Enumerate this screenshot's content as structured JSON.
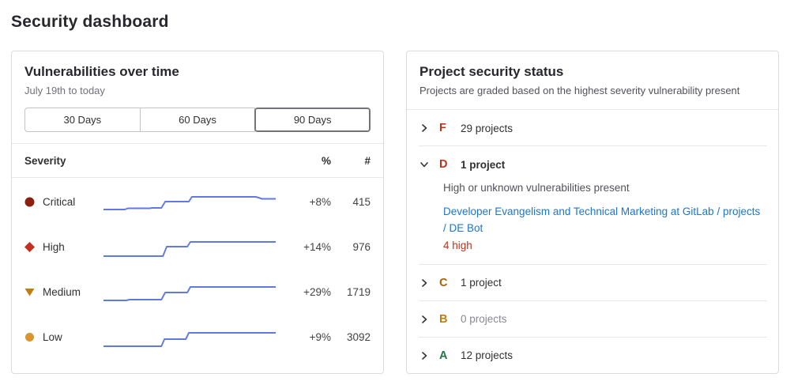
{
  "page": {
    "title": "Security dashboard"
  },
  "colors": {
    "link": "#1f75cb",
    "sparkline": "#617ae2",
    "severity": {
      "critical": "#8b1f10",
      "high": "#c4301f",
      "medium": "#c17d10",
      "low": "#d99530"
    },
    "grades": {
      "F": "#c0321c",
      "D": "#c0321c",
      "C": "#ab6100",
      "B": "#c17d10",
      "A": "#217645"
    },
    "danger_text": "#c0321c"
  },
  "vuln_card": {
    "title": "Vulnerabilities over time",
    "subtitle": "July 19th to today",
    "range_buttons": [
      {
        "label": "30 Days",
        "selected": false
      },
      {
        "label": "60 Days",
        "selected": false
      },
      {
        "label": "90 Days",
        "selected": true
      }
    ],
    "table": {
      "headers": {
        "severity": "Severity",
        "percent": "%",
        "count": "#"
      },
      "rows": [
        {
          "severity": "Critical",
          "icon": "severity-critical-icon",
          "percent": "+8%",
          "count": "415"
        },
        {
          "severity": "High",
          "icon": "severity-high-icon",
          "percent": "+14%",
          "count": "976"
        },
        {
          "severity": "Medium",
          "icon": "severity-medium-icon",
          "percent": "+29%",
          "count": "1719"
        },
        {
          "severity": "Low",
          "icon": "severity-low-icon",
          "percent": "+9%",
          "count": "3092"
        }
      ]
    }
  },
  "status_card": {
    "title": "Project security status",
    "subtitle": "Projects are graded based on the highest severity vulnerability present",
    "grades": [
      {
        "letter": "F",
        "count_label": "29 projects",
        "expanded": false
      },
      {
        "letter": "D",
        "count_label": "1 project",
        "expanded": true,
        "description": "High or unknown vulnerabilities present",
        "project_link": "Developer Evangelism and Technical Marketing at GitLab / projects / DE Bot",
        "vuln_summary": "4 high"
      },
      {
        "letter": "C",
        "count_label": "1 project",
        "expanded": false
      },
      {
        "letter": "B",
        "count_label": "0 projects",
        "expanded": false
      },
      {
        "letter": "A",
        "count_label": "12 projects",
        "expanded": false
      }
    ]
  },
  "chart_data": {
    "type": "line",
    "title": "Vulnerabilities over time",
    "subtitle": "July 19th to today",
    "x_range": "July 19th to today (90 days)",
    "axes_hidden": true,
    "legend": "none",
    "line_color": "#617ae2",
    "series": [
      {
        "name": "Critical",
        "change_percent": "+8%",
        "current_count": 415,
        "points": [
          [
            0,
            24
          ],
          [
            28,
            24
          ],
          [
            32,
            22.5
          ],
          [
            60,
            22.5
          ],
          [
            64,
            22
          ],
          [
            76,
            22
          ],
          [
            81,
            14
          ],
          [
            112,
            14
          ],
          [
            116,
            8
          ],
          [
            200,
            8
          ],
          [
            208,
            10.5
          ],
          [
            226,
            10.5
          ]
        ]
      },
      {
        "name": "High",
        "change_percent": "+14%",
        "current_count": 976,
        "points": [
          [
            0,
            26
          ],
          [
            78,
            26
          ],
          [
            83,
            14
          ],
          [
            110,
            14
          ],
          [
            114,
            8
          ],
          [
            226,
            8
          ]
        ]
      },
      {
        "name": "Medium",
        "change_percent": "+29%",
        "current_count": 1719,
        "points": [
          [
            0,
            25
          ],
          [
            30,
            25
          ],
          [
            34,
            24
          ],
          [
            76,
            24
          ],
          [
            81,
            15
          ],
          [
            110,
            15
          ],
          [
            114,
            8
          ],
          [
            226,
            8
          ]
        ]
      },
      {
        "name": "Low",
        "change_percent": "+9%",
        "current_count": 3092,
        "points": [
          [
            0,
            26
          ],
          [
            76,
            26
          ],
          [
            80,
            17
          ],
          [
            108,
            17
          ],
          [
            112,
            9
          ],
          [
            226,
            9
          ]
        ]
      }
    ]
  }
}
